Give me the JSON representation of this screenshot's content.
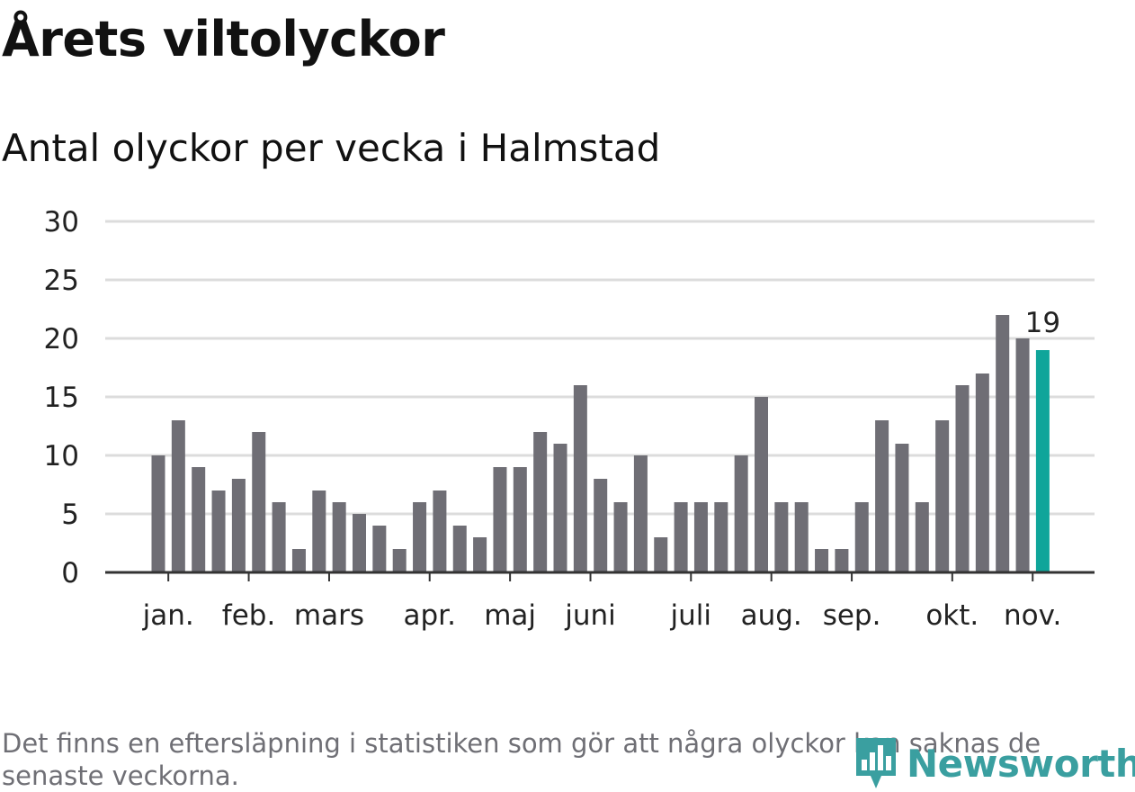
{
  "title": "Årets viltolyckor",
  "subtitle": "Antal olyckor per vecka i Halmstad",
  "note": "Det finns en eftersläpning i statistiken som gör att några olyckor kan saknas de senaste veckorna.",
  "logo": {
    "text": "Newsworthy",
    "icon": "bar-chart-pin-icon",
    "color": "#3a9fa0"
  },
  "chart_data": {
    "type": "bar",
    "values": [
      10,
      13,
      9,
      7,
      8,
      12,
      6,
      2,
      7,
      6,
      5,
      4,
      2,
      6,
      7,
      4,
      3,
      9,
      9,
      12,
      11,
      16,
      8,
      6,
      10,
      3,
      6,
      6,
      6,
      10,
      15,
      6,
      6,
      2,
      2,
      6,
      13,
      11,
      6,
      13,
      16,
      17,
      22,
      20,
      19
    ],
    "ylim": [
      0,
      30
    ],
    "yticks": [
      0,
      5,
      10,
      15,
      20,
      25,
      30
    ],
    "month_ticks": [
      {
        "label": "jan.",
        "bar_index": 0.5
      },
      {
        "label": "feb.",
        "bar_index": 4.5
      },
      {
        "label": "mars",
        "bar_index": 8.5
      },
      {
        "label": "apr.",
        "bar_index": 13.5
      },
      {
        "label": "maj",
        "bar_index": 17.5
      },
      {
        "label": "juni",
        "bar_index": 21.5
      },
      {
        "label": "juli",
        "bar_index": 26.5
      },
      {
        "label": "aug.",
        "bar_index": 30.5
      },
      {
        "label": "sep.",
        "bar_index": 34.5
      },
      {
        "label": "okt.",
        "bar_index": 39.5
      },
      {
        "label": "nov.",
        "bar_index": 43.5
      }
    ],
    "highlight_index": 44,
    "highlight_label": "19",
    "colors": {
      "bar": "#6f6e75",
      "highlight": "#0fa59a",
      "grid": "#dcdcdc",
      "axis": "#333333"
    },
    "grid": true
  }
}
